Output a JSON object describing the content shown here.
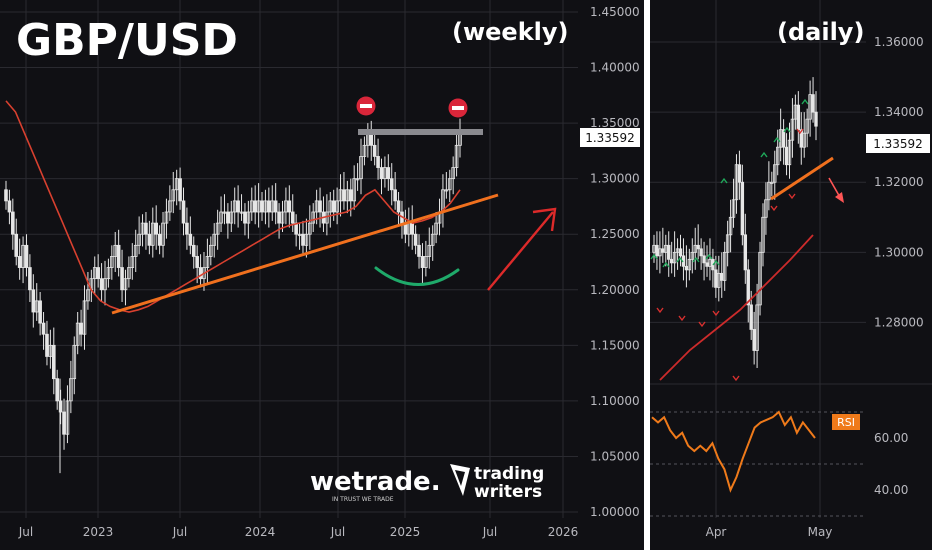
{
  "colors": {
    "background": "#101014",
    "candle": "#e6e6e6",
    "ma": "#d8402f",
    "trendline": "#f0701e",
    "resistance": "#8a8a8f",
    "arc": "#1faa6a",
    "arrow": "#dd2a2a",
    "rsi": "#ef7a1a",
    "marker_up": "#1fa85a",
    "marker_down": "#d8302f"
  },
  "icons": [
    "no-entry-icon",
    "trading-writers-logo-icon"
  ],
  "chart_data": [
    {
      "type": "candlestick",
      "title": "GBP/USD",
      "subtitle": "(weekly)",
      "current_price": "1.33592",
      "y_ticks": [
        "1.45000",
        "1.40000",
        "1.35000",
        "1.30000",
        "1.25000",
        "1.20000",
        "1.15000",
        "1.10000",
        "1.05000",
        "1.00000"
      ],
      "ylim": [
        1.0,
        1.45
      ],
      "x_ticks": [
        "Jul",
        "2023",
        "Jul",
        "2024",
        "Jul",
        "2025",
        "Jul",
        "2026"
      ],
      "grid": true,
      "close_series": [
        1.28,
        1.27,
        1.25,
        1.23,
        1.22,
        1.24,
        1.22,
        1.2,
        1.18,
        1.19,
        1.17,
        1.16,
        1.14,
        1.15,
        1.12,
        1.1,
        1.09,
        1.07,
        1.1,
        1.12,
        1.15,
        1.17,
        1.16,
        1.19,
        1.2,
        1.21,
        1.22,
        1.21,
        1.2,
        1.21,
        1.22,
        1.23,
        1.24,
        1.22,
        1.2,
        1.21,
        1.22,
        1.23,
        1.24,
        1.25,
        1.26,
        1.25,
        1.24,
        1.26,
        1.25,
        1.24,
        1.26,
        1.27,
        1.28,
        1.29,
        1.3,
        1.28,
        1.26,
        1.25,
        1.24,
        1.23,
        1.22,
        1.21,
        1.22,
        1.23,
        1.24,
        1.25,
        1.26,
        1.27,
        1.27,
        1.26,
        1.27,
        1.28,
        1.27,
        1.27,
        1.26,
        1.27,
        1.28,
        1.27,
        1.28,
        1.27,
        1.28,
        1.27,
        1.28,
        1.27,
        1.26,
        1.27,
        1.28,
        1.27,
        1.26,
        1.25,
        1.25,
        1.24,
        1.25,
        1.26,
        1.27,
        1.28,
        1.27,
        1.26,
        1.27,
        1.28,
        1.27,
        1.28,
        1.29,
        1.28,
        1.29,
        1.28,
        1.3,
        1.3,
        1.32,
        1.33,
        1.34,
        1.33,
        1.32,
        1.31,
        1.3,
        1.31,
        1.3,
        1.29,
        1.28,
        1.27,
        1.26,
        1.25,
        1.26,
        1.25,
        1.24,
        1.23,
        1.22,
        1.23,
        1.24,
        1.25,
        1.26,
        1.27,
        1.29,
        1.29,
        1.3,
        1.31,
        1.33,
        1.34
      ],
      "moving_average": {
        "from_index": 0,
        "values": [
          1.37,
          1.36,
          1.34,
          1.32,
          1.3,
          1.28,
          1.26,
          1.24,
          1.22,
          1.2,
          1.19,
          1.185,
          1.182,
          1.18,
          1.182,
          1.185,
          1.19,
          1.195,
          1.2,
          1.205,
          1.21,
          1.215,
          1.22,
          1.225,
          1.23,
          1.235,
          1.24,
          1.245,
          1.25,
          1.255,
          1.258,
          1.26,
          1.262,
          1.264,
          1.266,
          1.268,
          1.27,
          1.275,
          1.285,
          1.29,
          1.28,
          1.27,
          1.265,
          1.26,
          1.262,
          1.265,
          1.27,
          1.278,
          1.29
        ]
      },
      "annotations": [
        "resistance-line",
        "double-top-markers",
        "support-trendline",
        "rounded-bottom-arc",
        "up-arrow"
      ]
    },
    {
      "type": "candlestick",
      "title": "",
      "subtitle": "(daily)",
      "current_price": "1.33592",
      "y_ticks": [
        "1.36000",
        "1.34000",
        "1.32000",
        "1.30000",
        "1.28000"
      ],
      "ylim": [
        1.265,
        1.372
      ],
      "x_ticks": [
        "Apr",
        "May"
      ],
      "grid": true,
      "close_series": [
        1.302,
        1.299,
        1.301,
        1.3,
        1.302,
        1.298,
        1.297,
        1.3,
        1.301,
        1.299,
        1.296,
        1.295,
        1.298,
        1.3,
        1.302,
        1.301,
        1.299,
        1.297,
        1.296,
        1.298,
        1.295,
        1.29,
        1.294,
        1.292,
        1.3,
        1.305,
        1.31,
        1.315,
        1.325,
        1.32,
        1.305,
        1.295,
        1.285,
        1.278,
        1.272,
        1.285,
        1.3,
        1.31,
        1.315,
        1.32,
        1.32,
        1.325,
        1.33,
        1.335,
        1.33,
        1.325,
        1.332,
        1.338,
        1.342,
        1.335,
        1.33,
        1.334,
        1.338,
        1.345,
        1.34,
        1.336
      ],
      "rsi": {
        "label": "RSI",
        "y_ticks": [
          "60.00",
          "40.00"
        ],
        "ylim": [
          30,
          80
        ],
        "values": [
          68,
          66,
          68,
          63,
          60,
          62,
          57,
          55,
          57,
          55,
          58,
          52,
          48,
          40,
          45,
          52,
          58,
          64,
          66,
          67,
          68,
          70,
          65,
          68,
          62,
          66,
          63,
          60
        ]
      }
    }
  ],
  "logos": {
    "wetrade": "wetrade.",
    "wetrade_tagline": "IN TRUST WE TRADE",
    "tw_line1": "trading",
    "tw_line2": "writers"
  }
}
